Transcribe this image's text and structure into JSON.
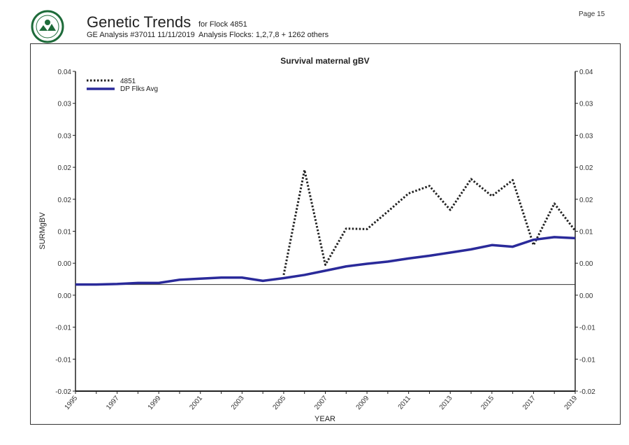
{
  "header": {
    "title": "Genetic Trends",
    "subtitle": "GE Analysis #37011 11/11/2019",
    "flock": "for Flock 4851",
    "analysis_flocks": "Analysis Flocks: 1,2,7,8 + 1262 others",
    "page": "Page 15",
    "logo": "SIL logo"
  },
  "colors": {
    "flock": "#222222",
    "avg": "#2a2a9a",
    "logo": "#1e6b3a"
  },
  "chart_data": {
    "type": "line",
    "title": "Survival maternal gBV",
    "xlabel": "YEAR",
    "ylabel": "SURMgBV",
    "xlim": [
      1995,
      2019
    ],
    "ylim": [
      -0.02,
      0.04
    ],
    "yticks": [
      0.04,
      0.034,
      0.028,
      0.022,
      0.016,
      0.01,
      0.004,
      -0.002,
      -0.008,
      -0.014,
      -0.02
    ],
    "ytick_labels": [
      "0.04",
      "0.03",
      "0.03",
      "0.02",
      "0.02",
      "0.01",
      "0.00",
      "0.00",
      "-0.01",
      "-0.01",
      "-0.02"
    ],
    "xtick_labels": [
      "1995",
      "1997",
      "1999",
      "2001",
      "2003",
      "2005",
      "2007",
      "2009",
      "2011",
      "2013",
      "2015",
      "2017",
      "2019"
    ],
    "reference_line": 0,
    "grid": false,
    "legend_position": "top-left",
    "series": [
      {
        "name": "4851",
        "style": "dotted",
        "x": [
          2005,
          2006,
          2007,
          2008,
          2009,
          2010,
          2011,
          2012,
          2013,
          2014,
          2015,
          2016,
          2017,
          2018,
          2019
        ],
        "values": [
          0.0018,
          0.0215,
          0.0037,
          0.0105,
          0.0104,
          0.0137,
          0.0171,
          0.0185,
          0.014,
          0.0198,
          0.0166,
          0.0196,
          0.0074,
          0.0152,
          0.0101
        ]
      },
      {
        "name": "DP Flks Avg",
        "style": "solid",
        "x": [
          1995,
          1996,
          1997,
          1998,
          1999,
          2000,
          2001,
          2002,
          2003,
          2004,
          2005,
          2006,
          2007,
          2008,
          2009,
          2010,
          2011,
          2012,
          2013,
          2014,
          2015,
          2016,
          2017,
          2018,
          2019
        ],
        "values": [
          0,
          0,
          0.0001,
          0.0003,
          0.0003,
          0.0009,
          0.0011,
          0.0013,
          0.0013,
          0.0007,
          0.0012,
          0.0018,
          0.0026,
          0.0034,
          0.0039,
          0.0043,
          0.0049,
          0.0054,
          0.006,
          0.0066,
          0.0074,
          0.0071,
          0.0084,
          0.0089,
          0.0087
        ]
      }
    ]
  }
}
